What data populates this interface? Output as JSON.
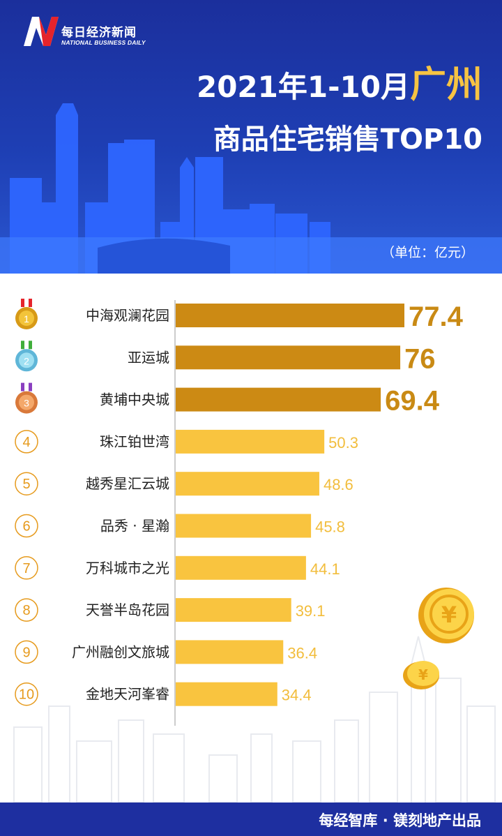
{
  "brand": {
    "name_cn": "每日经济新闻",
    "name_en": "NATIONAL BUSINESS DAILY"
  },
  "title": {
    "prefix": "2021年1-10月",
    "city": "广州",
    "line2": "商品住宅销售TOP10"
  },
  "unit": "（单位：亿元）",
  "footer": {
    "credit": "每经智库 · 镁刻地产出品"
  },
  "colors": {
    "header_blue": "#1e3fb4",
    "title_gold": "#f6c343",
    "top3_bar": "#cc8a14",
    "other_bar": "#f9c43f",
    "footer_blue": "#1e2fa0"
  },
  "icons": {
    "gold_medal": "gold-medal-icon",
    "silver_medal": "silver-medal-icon",
    "bronze_medal": "bronze-medal-icon",
    "rank_circle": "rank-circle-icon",
    "coin": "yuan-coin-icon"
  },
  "chart_data": {
    "type": "bar",
    "orientation": "horizontal",
    "categories": [
      "中海观澜花园",
      "亚运城",
      "黄埔中央城",
      "珠江铂世湾",
      "越秀星汇云城",
      "品秀 · 星瀚",
      "万科城市之光",
      "天誉半岛花园",
      "广州融创文旅城",
      "金地天河峯睿"
    ],
    "values": [
      77.4,
      76,
      69.4,
      50.3,
      48.6,
      45.8,
      44.1,
      39.1,
      36.4,
      34.4
    ],
    "value_labels": [
      "77.4",
      "76",
      "69.4",
      "50.3",
      "48.6",
      "45.8",
      "44.1",
      "39.1",
      "36.4",
      "34.4"
    ],
    "ranks": [
      "1",
      "2",
      "3",
      "4",
      "5",
      "6",
      "7",
      "8",
      "9",
      "10"
    ],
    "xlim": [
      0,
      77.4
    ],
    "highlight_top": 3,
    "grid": false,
    "legend": "none"
  }
}
